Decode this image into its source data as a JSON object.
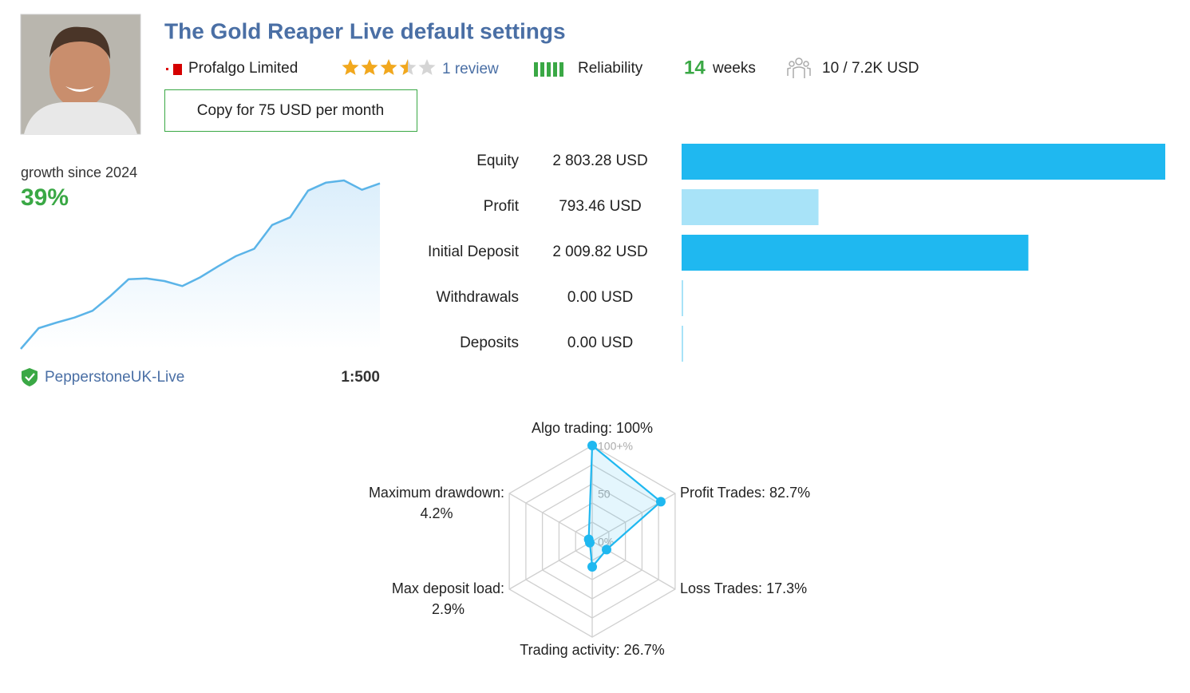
{
  "header": {
    "title": "The Gold Reaper Live default settings",
    "company": "Profalgo Limited",
    "rating": 3.5,
    "rating_max": 5,
    "reviews": "1 review",
    "reliability": "Reliability",
    "weeks_value": "14",
    "weeks_label": "weeks",
    "subscribers": "10 / 7.2K USD",
    "copy_button": "Copy for 75 USD per month"
  },
  "growth": {
    "type": "line",
    "label": "growth since 2024",
    "value": "39%",
    "color": "#5bb4e8",
    "values": [
      0,
      4.9,
      6.2,
      7.4,
      9.0,
      12.5,
      16.4,
      16.6,
      16.0,
      14.8,
      16.9,
      19.5,
      21.9,
      23.6,
      29.2,
      31.0,
      37.3,
      39.2,
      39.7,
      37.5,
      39.0
    ]
  },
  "broker": {
    "name": "PepperstoneUK-Live",
    "leverage": "1:500"
  },
  "stats": {
    "type": "bar",
    "categories": [
      "Equity",
      "Profit",
      "Initial Deposit",
      "Withdrawals",
      "Deposits"
    ],
    "values": [
      2803.28,
      793.46,
      2009.82,
      0,
      0
    ],
    "value_labels": [
      "2 803.28 USD",
      "793.46 USD",
      "2 009.82 USD",
      "0.00 USD",
      "0.00 USD"
    ],
    "colors": [
      "#1fb8f0",
      "#a8e3f8",
      "#1fb8f0",
      "#a8e3f8",
      "#a8e3f8"
    ]
  },
  "radar": {
    "type": "radar",
    "categories": [
      "Algo trading:",
      "Profit Trades:",
      "Loss Trades:",
      "Trading activity:",
      "Max deposit load:",
      "Maximum drawdown:"
    ],
    "values": [
      100,
      82.7,
      17.3,
      26.7,
      2.9,
      4.2
    ],
    "value_labels": [
      "100%",
      "82.7%",
      "17.3%",
      "26.7%",
      "2.9%",
      "4.2%"
    ],
    "rlim": [
      0,
      100
    ],
    "rticks": [
      {
        "value": 0,
        "label": "0%"
      },
      50,
      {
        "value": 100,
        "label": "100+%"
      }
    ],
    "color": "#1fb8f0"
  }
}
